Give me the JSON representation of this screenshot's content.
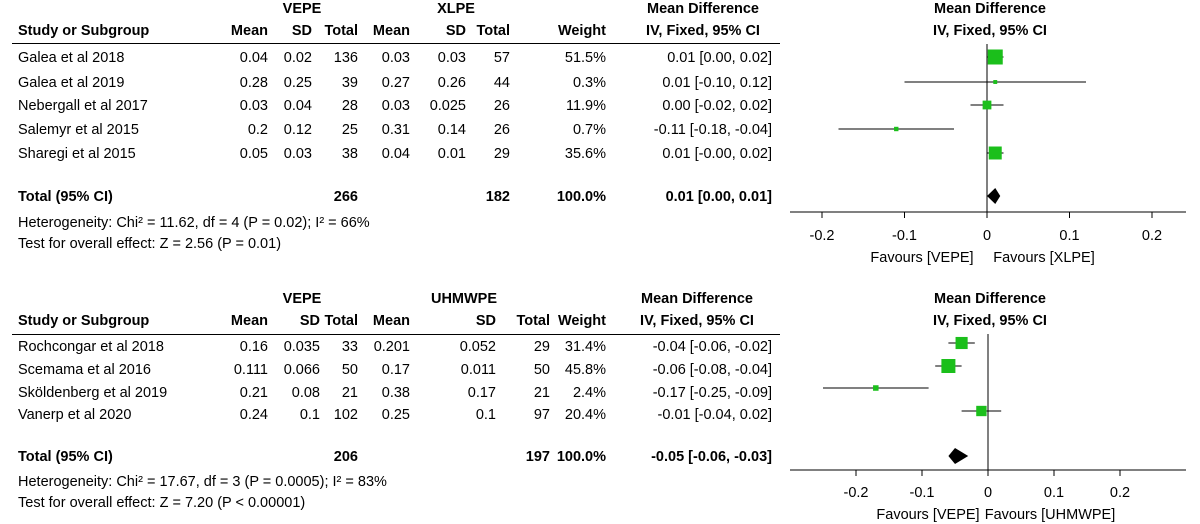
{
  "chart_data": [
    {
      "type": "forest",
      "group_headers": {
        "experimental": "VEPE",
        "control": "XLPE",
        "effect": "Mean Difference",
        "plot": "Mean Difference"
      },
      "column_headers": {
        "study": "Study or Subgroup",
        "mean1": "Mean",
        "sd1": "SD",
        "total1": "Total",
        "mean2": "Mean",
        "sd2": "SD",
        "total2": "Total",
        "weight": "Weight",
        "effect": "IV, Fixed, 95% CI",
        "plot": "IV, Fixed, 95% CI"
      },
      "studies": [
        {
          "name": "Galea et al 2018",
          "mean1": "0.04",
          "sd1": "0.02",
          "total1": "136",
          "mean2": "0.03",
          "sd2": "0.03",
          "total2": "57",
          "weight": "51.5%",
          "ci_text": "0.01 [0.00, 0.02]",
          "md": 0.01,
          "lo": 0.0,
          "hi": 0.02,
          "w": 51.5
        },
        {
          "name": "Galea et al 2019",
          "mean1": "0.28",
          "sd1": "0.25",
          "total1": "39",
          "mean2": "0.27",
          "sd2": "0.26",
          "total2": "44",
          "weight": "0.3%",
          "ci_text": "0.01 [-0.10, 0.12]",
          "md": 0.01,
          "lo": -0.1,
          "hi": 0.12,
          "w": 0.3
        },
        {
          "name": "Nebergall et al 2017",
          "mean1": "0.03",
          "sd1": "0.04",
          "total1": "28",
          "mean2": "0.03",
          "sd2": "0.025",
          "total2": "26",
          "weight": "11.9%",
          "ci_text": "0.00 [-0.02, 0.02]",
          "md": 0.0,
          "lo": -0.02,
          "hi": 0.02,
          "w": 11.9
        },
        {
          "name": "Salemyr et al 2015",
          "mean1": "0.2",
          "sd1": "0.12",
          "total1": "25",
          "mean2": "0.31",
          "sd2": "0.14",
          "total2": "26",
          "weight": "0.7%",
          "ci_text": "-0.11 [-0.18, -0.04]",
          "md": -0.11,
          "lo": -0.18,
          "hi": -0.04,
          "w": 0.7
        },
        {
          "name": "Sharegi et al 2015",
          "mean1": "0.05",
          "sd1": "0.03",
          "total1": "38",
          "mean2": "0.04",
          "sd2": "0.01",
          "total2": "29",
          "weight": "35.6%",
          "ci_text": "0.01 [-0.00, 0.02]",
          "md": 0.01,
          "lo": 0.0,
          "hi": 0.02,
          "w": 35.6
        }
      ],
      "total": {
        "label": "Total (95% CI)",
        "total1": "266",
        "total2": "182",
        "weight": "100.0%",
        "ci_text": "0.01 [0.00, 0.01]",
        "md": 0.01,
        "lo": 0.0,
        "hi": 0.01
      },
      "heterogeneity": "Heterogeneity: Chi² = 11.62, df = 4 (P = 0.02); I² = 66%",
      "overall_effect": "Test for overall effect: Z = 2.56 (P = 0.01)",
      "axis": {
        "min": -0.2,
        "max": 0.2,
        "ticks": [
          -0.2,
          -0.1,
          0,
          0.1,
          0.2
        ],
        "tick_labels": [
          "-0.2",
          "-0.1",
          "0",
          "0.1",
          "0.2"
        ]
      },
      "favours": {
        "left": "Favours [VEPE]",
        "right": "Favours [XLPE]"
      }
    },
    {
      "type": "forest",
      "group_headers": {
        "experimental": "VEPE",
        "control": "UHMWPE",
        "effect": "Mean Difference",
        "plot": "Mean Difference"
      },
      "column_headers": {
        "study": "Study or Subgroup",
        "mean1": "Mean",
        "sd1": "SD",
        "total1": "Total",
        "mean2": "Mean",
        "sd2": "SD",
        "total2": "Total",
        "weight": "Weight",
        "effect": "IV, Fixed, 95% CI",
        "plot": "IV, Fixed, 95% CI"
      },
      "studies": [
        {
          "name": "Rochcongar et al 2018",
          "mean1": "0.16",
          "sd1": "0.035",
          "total1": "33",
          "mean2": "0.201",
          "sd2": "0.052",
          "total2": "29",
          "weight": "31.4%",
          "ci_text": "-0.04 [-0.06, -0.02]",
          "md": -0.04,
          "lo": -0.06,
          "hi": -0.02,
          "w": 31.4
        },
        {
          "name": "Scemama et al 2016",
          "mean1": "0.111",
          "sd1": "0.066",
          "total1": "50",
          "mean2": "0.17",
          "sd2": "0.011",
          "total2": "50",
          "weight": "45.8%",
          "ci_text": "-0.06 [-0.08, -0.04]",
          "md": -0.06,
          "lo": -0.08,
          "hi": -0.04,
          "w": 45.8
        },
        {
          "name": "Sköldenberg et al 2019",
          "mean1": "0.21",
          "sd1": "0.08",
          "total1": "21",
          "mean2": "0.38",
          "sd2": "0.17",
          "total2": "21",
          "weight": "2.4%",
          "ci_text": "-0.17 [-0.25, -0.09]",
          "md": -0.17,
          "lo": -0.25,
          "hi": -0.09,
          "w": 2.4
        },
        {
          "name": "Vanerp et al 2020",
          "mean1": "0.24",
          "sd1": "0.1",
          "total1": "102",
          "mean2": "0.25",
          "sd2": "0.1",
          "total2": "97",
          "weight": "20.4%",
          "ci_text": "-0.01 [-0.04, 0.02]",
          "md": -0.01,
          "lo": -0.04,
          "hi": 0.02,
          "w": 20.4
        }
      ],
      "total": {
        "label": "Total (95% CI)",
        "total1": "206",
        "total2": "197",
        "weight": "100.0%",
        "ci_text": "-0.05 [-0.06, -0.03]",
        "md": -0.05,
        "lo": -0.06,
        "hi": -0.03
      },
      "heterogeneity": "Heterogeneity: Chi² = 17.67, df = 3 (P = 0.0005); I² = 83%",
      "overall_effect": "Test for overall effect: Z = 7.20 (P < 0.00001)",
      "axis": {
        "min": -0.3,
        "max": 0.3,
        "ticks": [
          -0.2,
          -0.1,
          0,
          0.1,
          0.2
        ],
        "tick_labels": [
          "-0.2",
          "-0.1",
          "0",
          "0.1",
          "0.2"
        ]
      },
      "favours": {
        "left": "Favours [VEPE]",
        "right": "Favours [UHMWPE]"
      }
    }
  ],
  "colors": {
    "square": "#1bbf1b",
    "line": "#000000",
    "diamond": "#000000"
  }
}
